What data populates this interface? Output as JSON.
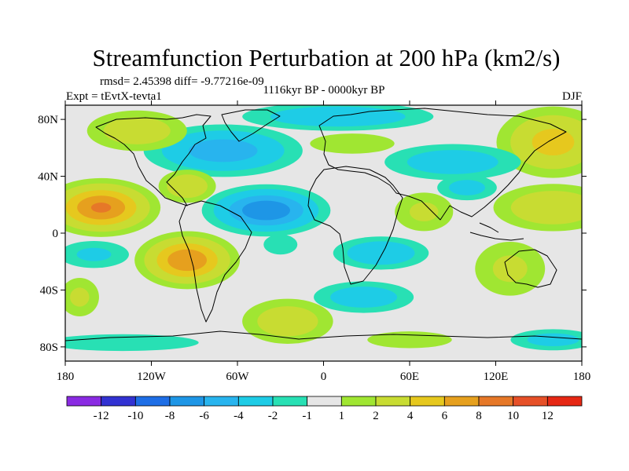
{
  "chart_data": {
    "type": "heatmap",
    "title": "Streamfunction Perturbation at 200 hPa (km2/s)",
    "stats_label": "rmsd= 2.45398 diff= -9.77216e-09",
    "experiment_label": "Expt = tEvtX-tevta1",
    "period_label": "1116kyr BP - 0000kyr BP",
    "season_label": "DJF",
    "units": "km2/s",
    "lon_range": [
      -180,
      180
    ],
    "lat_range": [
      -90,
      90
    ],
    "x_ticks": [
      {
        "value": -180,
        "label": "180"
      },
      {
        "value": -120,
        "label": "120W"
      },
      {
        "value": -60,
        "label": "60W"
      },
      {
        "value": 0,
        "label": "0"
      },
      {
        "value": 60,
        "label": "60E"
      },
      {
        "value": 120,
        "label": "120E"
      },
      {
        "value": 180,
        "label": "180"
      }
    ],
    "y_ticks": [
      {
        "value": 80,
        "label": "80N"
      },
      {
        "value": 40,
        "label": "40N"
      },
      {
        "value": 0,
        "label": "0"
      },
      {
        "value": -40,
        "label": "40S"
      },
      {
        "value": -80,
        "label": "80S"
      }
    ],
    "colorbar": {
      "levels": [
        -12,
        -10,
        -8,
        -6,
        -4,
        -2,
        -1,
        1,
        2,
        4,
        6,
        8,
        10,
        12
      ],
      "labels": [
        "-12",
        "-10",
        "-8",
        "-6",
        "-4",
        "-2",
        "-1",
        "1",
        "2",
        "4",
        "6",
        "8",
        "10",
        "12"
      ],
      "colors": [
        "#8a2be2",
        "#3232d2",
        "#1e6ee6",
        "#1e96e6",
        "#28b4ee",
        "#1ecce6",
        "#28e0b4",
        "#e6e6e6",
        "#a0e632",
        "#c8dc32",
        "#e6c81e",
        "#e6a01e",
        "#e67828",
        "#e65028",
        "#e62814"
      ]
    },
    "anomalies": [
      {
        "lon": -155,
        "lat": 18,
        "value": 8.5,
        "sx": 20,
        "sy": 10
      },
      {
        "lon": -95,
        "lat": -19,
        "value": 8.0,
        "sx": 18,
        "sy": 10
      },
      {
        "lon": -40,
        "lat": 16,
        "value": -8.0,
        "sx": 22,
        "sy": 9
      },
      {
        "lon": -70,
        "lat": 58,
        "value": -5.5,
        "sx": 30,
        "sy": 10
      },
      {
        "lon": -95,
        "lat": 33,
        "value": 4.0,
        "sx": 12,
        "sy": 7
      },
      {
        "lon": -130,
        "lat": 72,
        "value": 3.5,
        "sx": 22,
        "sy": 9
      },
      {
        "lon": 160,
        "lat": 64,
        "value": 5.0,
        "sx": 22,
        "sy": 14
      },
      {
        "lon": 20,
        "lat": 63,
        "value": 2.0,
        "sx": 25,
        "sy": 6
      },
      {
        "lon": 10,
        "lat": 82,
        "value": -4.0,
        "sx": 40,
        "sy": 6
      },
      {
        "lon": 90,
        "lat": 50,
        "value": -3.5,
        "sx": 30,
        "sy": 8
      },
      {
        "lon": 160,
        "lat": 18,
        "value": 4.0,
        "sx": 25,
        "sy": 10
      },
      {
        "lon": 70,
        "lat": 15,
        "value": 2.5,
        "sx": 15,
        "sy": 10
      },
      {
        "lon": 100,
        "lat": 32,
        "value": -3.0,
        "sx": 14,
        "sy": 6
      },
      {
        "lon": 40,
        "lat": -14,
        "value": -4.0,
        "sx": 20,
        "sy": 7
      },
      {
        "lon": 28,
        "lat": -45,
        "value": -3.5,
        "sx": 22,
        "sy": 7
      },
      {
        "lon": -30,
        "lat": -8,
        "value": -2.0,
        "sx": 10,
        "sy": 6
      },
      {
        "lon": -160,
        "lat": -15,
        "value": -2.5,
        "sx": 18,
        "sy": 7
      },
      {
        "lon": -170,
        "lat": -45,
        "value": 2.5,
        "sx": 10,
        "sy": 10
      },
      {
        "lon": -25,
        "lat": -62,
        "value": 3.5,
        "sx": 20,
        "sy": 10
      },
      {
        "lon": -140,
        "lat": -77,
        "value": -2.0,
        "sx": 45,
        "sy": 5
      },
      {
        "lon": 130,
        "lat": -25,
        "value": 2.5,
        "sx": 18,
        "sy": 14
      },
      {
        "lon": 160,
        "lat": -75,
        "value": -3.0,
        "sx": 20,
        "sy": 5
      },
      {
        "lon": 60,
        "lat": -75,
        "value": 2.0,
        "sx": 25,
        "sy": 5
      }
    ]
  }
}
